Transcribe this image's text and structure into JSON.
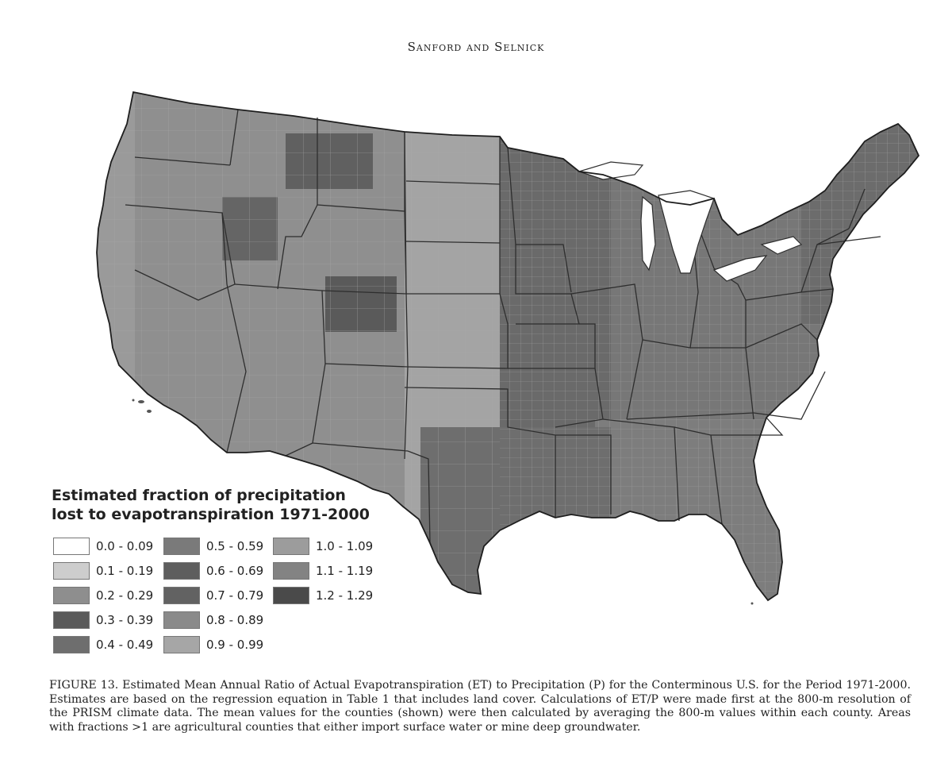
{
  "running_head": "Sanford and Selnick",
  "map": {
    "region": "Conterminous U.S.",
    "palette": {
      "lightest": "#ffffff",
      "very_light": "#cfcfcf",
      "light": "#a9a9a9",
      "mid": "#8c8c8c",
      "mid_dark": "#727272",
      "dark": "#5c5c5c",
      "darkest": "#444444",
      "boundary": "#2a2a2a",
      "county_line": "#9a9a9a"
    }
  },
  "legend": {
    "title_line1": "Estimated fraction of precipitation",
    "title_line2": "lost to evapotranspiration 1971-2000",
    "items": [
      {
        "label": "0.0 - 0.09",
        "color": "#ffffff"
      },
      {
        "label": "0.1 - 0.19",
        "color": "#cdcdcd"
      },
      {
        "label": "0.2 - 0.29",
        "color": "#8e8e8e"
      },
      {
        "label": "0.3 - 0.39",
        "color": "#5a5a5a"
      },
      {
        "label": "0.4 - 0.49",
        "color": "#6e6e6e"
      },
      {
        "label": "0.5 - 0.59",
        "color": "#7a7a7a"
      },
      {
        "label": "0.6 - 0.69",
        "color": "#5e5e5e"
      },
      {
        "label": "0.7 - 0.79",
        "color": "#626262"
      },
      {
        "label": "0.8 - 0.89",
        "color": "#8a8a8a"
      },
      {
        "label": "0.9 - 0.99",
        "color": "#a6a6a6"
      },
      {
        "label": "1.0 - 1.09",
        "color": "#9c9c9c"
      },
      {
        "label": "1.1 - 1.19",
        "color": "#838383"
      },
      {
        "label": "1.2 - 1.29",
        "color": "#4a4a4a"
      }
    ]
  },
  "caption": "FIGURE 13. Estimated Mean Annual Ratio of Actual Evapotranspiration (ET) to Precipitation (P) for the Conterminous U.S. for the Period 1971-2000. Estimates are based on the regression equation in Table 1 that includes land cover. Calculations of ET/P were made first at the 800-m resolution of the PRISM climate data. The mean values for the counties (shown) were then calculated by averaging the 800-m values within each county. Areas with fractions >1 are agricultural counties that either import surface water or mine deep groundwater."
}
